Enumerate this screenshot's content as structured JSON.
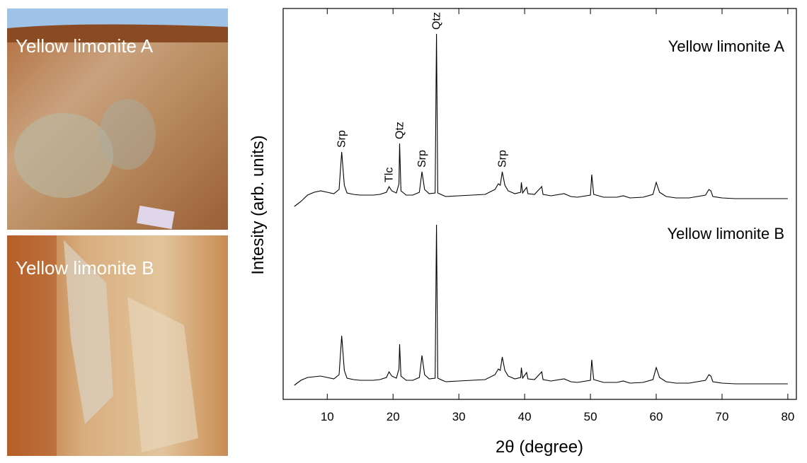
{
  "photos": [
    {
      "label": "Yellow limonite A"
    },
    {
      "label": "Yellow limonite B"
    }
  ],
  "chart_data": {
    "type": "line",
    "x_label": "2θ (degree)",
    "y_label": "Intesity (arb. units)",
    "x": [
      5,
      6,
      7,
      8,
      9,
      10,
      11,
      11.8,
      12.2,
      12.6,
      13,
      14,
      15,
      16,
      17,
      18,
      19,
      19.4,
      19.8,
      20.5,
      20.9,
      21.0,
      21.2,
      22,
      23,
      24,
      24.4,
      24.8,
      25.5,
      26.4,
      26.6,
      26.8,
      27.5,
      28,
      30,
      32,
      34,
      35.5,
      36,
      36.3,
      36.6,
      37,
      37.5,
      38.5,
      39.4,
      39.5,
      39.7,
      40.3,
      40.5,
      41.5,
      42.6,
      42.8,
      44,
      46,
      47,
      48,
      50,
      50.2,
      50.5,
      52,
      54,
      55,
      56,
      58,
      59.5,
      60,
      60.5,
      61.5,
      63,
      65,
      67.5,
      68,
      68.3,
      68.6,
      70,
      72,
      75,
      78,
      80
    ],
    "series": [
      {
        "name": "Yellow limonite A",
        "color": "#000000",
        "values": [
          273,
          280,
          289,
          293,
          295,
          293,
          291,
          297,
          350,
          303,
          292,
          290,
          289,
          289,
          289,
          290,
          293,
          301,
          295,
          292,
          305,
          362,
          295,
          289,
          289,
          293,
          322,
          297,
          291,
          292,
          517,
          292,
          289,
          287,
          288,
          289,
          290,
          297,
          305,
          303,
          322,
          303,
          295,
          291,
          293,
          307,
          292,
          300,
          291,
          290,
          301,
          290,
          288,
          291,
          287,
          286,
          289,
          318,
          290,
          286,
          286,
          288,
          285,
          286,
          290,
          307,
          293,
          287,
          285,
          285,
          289,
          297,
          295,
          287,
          285,
          284,
          284,
          284,
          284
        ]
      },
      {
        "name": "Yellow limonite B",
        "color": "#000000",
        "values": [
          20,
          27,
          31,
          32,
          33,
          31,
          29,
          35,
          90,
          41,
          30,
          28,
          27,
          27,
          27,
          28,
          31,
          39,
          33,
          30,
          43,
          78,
          33,
          27,
          27,
          31,
          62,
          35,
          29,
          30,
          247,
          30,
          27,
          25,
          26,
          27,
          28,
          35,
          43,
          41,
          60,
          41,
          33,
          29,
          31,
          45,
          30,
          38,
          29,
          28,
          39,
          28,
          26,
          29,
          25,
          24,
          27,
          56,
          28,
          24,
          24,
          26,
          23,
          24,
          28,
          45,
          31,
          25,
          23,
          23,
          27,
          35,
          33,
          25,
          23,
          22,
          22,
          22,
          22
        ]
      }
    ],
    "annotations": [
      {
        "text": "Srp",
        "x": 12.2
      },
      {
        "text": "Tlc",
        "x": 19.4
      },
      {
        "text": "Qtz",
        "x": 21.0
      },
      {
        "text": "Srp",
        "x": 24.4
      },
      {
        "text": "Qtz",
        "x": 26.6
      },
      {
        "text": "Srp",
        "x": 36.6
      }
    ],
    "xlim": [
      3.3,
      81.3
    ],
    "ylim": [
      0,
      553
    ],
    "xticks": [
      10,
      20,
      30,
      40,
      50,
      60,
      70,
      80
    ]
  }
}
